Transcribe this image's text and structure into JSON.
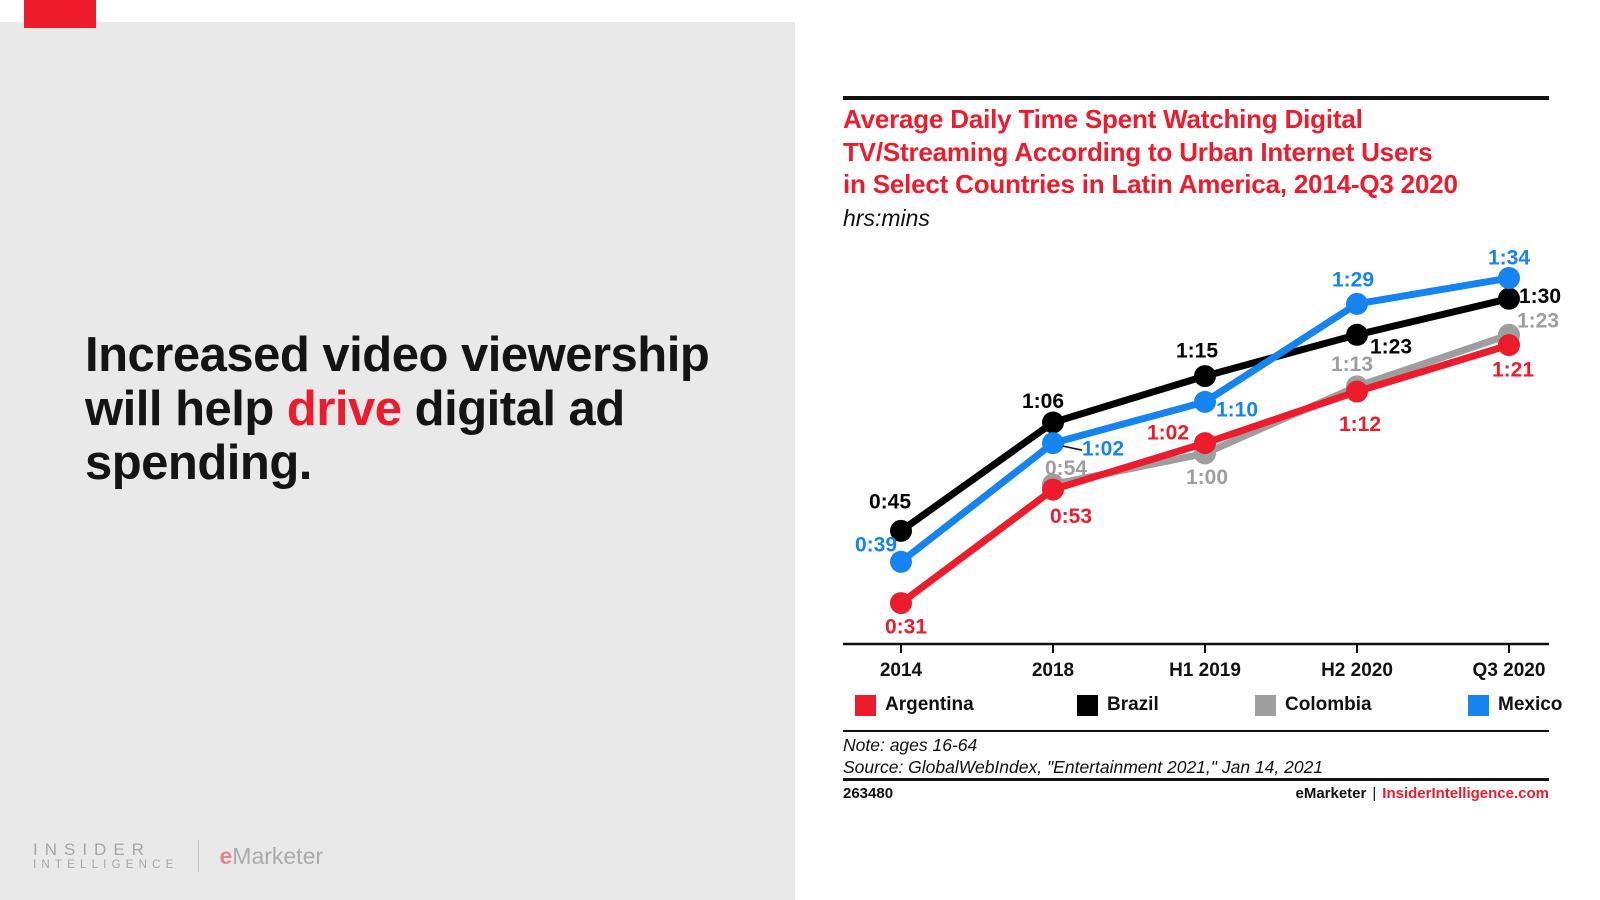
{
  "left_panel": {
    "headline": {
      "line1": "Increased video viewership",
      "line2_pre": "will help ",
      "line2_accent": "drive",
      "line2_post": " digital ad",
      "line3": "spending."
    },
    "logo": {
      "insider": "INSIDER",
      "intelligence": "INTELLIGENCE",
      "emarketer_e": "e",
      "emarketer_rest": "Marketer"
    }
  },
  "chart_panel": {
    "title_line1": "Average Daily Time Spent Watching Digital",
    "title_line2": "TV/Streaming According to Urban Internet Users",
    "title_line3": "in Select Countries in Latin America, 2014-Q3 2020",
    "subtitle": "hrs:mins",
    "note": "Note: ages 16-64",
    "source": "Source: GlobalWebIndex, \"Entertainment 2021,\" Jan 14, 2021",
    "chart_id": "263480",
    "footer_brand": "eMarketer",
    "footer_sep": "|",
    "footer_site": "InsiderIntelligence.com"
  },
  "colors": {
    "accent_red": "#ec1c2d",
    "panel_gray": "#e9e9e9",
    "axis_black": "#111111"
  },
  "chart_data": {
    "type": "line",
    "title": "Average Daily Time Spent Watching Digital TV/Streaming According to Urban Internet Users in Select Countries in Latin America, 2014-Q3 2020",
    "unit": "hrs:mins",
    "categories": [
      "2014",
      "2018",
      "H1 2019",
      "H2 2020",
      "Q3 2020"
    ],
    "legend_position": "bottom",
    "grid": false,
    "ylim_minutes": [
      0,
      100
    ],
    "series": [
      {
        "name": "Argentina",
        "color": "#ec1c2d",
        "points": [
          {
            "category": "2014",
            "label": "0:31",
            "minutes": 31,
            "dx": 5,
            "dy": 24
          },
          {
            "category": "2018",
            "label": "0:53",
            "minutes": 53,
            "dx": 18,
            "dy": 27
          },
          {
            "category": "H1 2019",
            "label": "1:02",
            "minutes": 62,
            "dx": -37,
            "dy": -10
          },
          {
            "category": "H2 2020",
            "label": "1:12",
            "minutes": 72,
            "dx": 3,
            "dy": 33
          },
          {
            "category": "Q3 2020",
            "label": "1:21",
            "minutes": 81,
            "dx": 4,
            "dy": 25
          }
        ]
      },
      {
        "name": "Brazil",
        "color": "#000000",
        "points": [
          {
            "category": "2014",
            "label": "0:45",
            "minutes": 45,
            "dx": -11,
            "dy": -29
          },
          {
            "category": "2018",
            "label": "1:06",
            "minutes": 66,
            "dx": -10,
            "dy": -21
          },
          {
            "category": "H1 2019",
            "label": "1:15",
            "minutes": 75,
            "dx": -8,
            "dy": -25
          },
          {
            "category": "H2 2020",
            "label": "1:23",
            "minutes": 83,
            "dx": 34,
            "dy": 12
          },
          {
            "category": "Q3 2020",
            "label": "1:30",
            "minutes": 90,
            "dx": 31,
            "dy": -2
          }
        ]
      },
      {
        "name": "Colombia",
        "color": "#9e9e9e",
        "points": [
          {
            "category": "2014",
            "label": null,
            "minutes": null
          },
          {
            "category": "2018",
            "label": "0:54",
            "minutes": 54,
            "dx": 13,
            "dy": -16
          },
          {
            "category": "H1 2019",
            "label": "1:00",
            "minutes": 60,
            "dx": 2,
            "dy": 24
          },
          {
            "category": "H2 2020",
            "label": "1:13",
            "minutes": 73,
            "dx": -5,
            "dy": -22
          },
          {
            "category": "Q3 2020",
            "label": "1:23",
            "minutes": 83,
            "dx": 29,
            "dy": -14
          }
        ]
      },
      {
        "name": "Mexico",
        "color": "#1583f0",
        "points": [
          {
            "category": "2014",
            "label": "0:39",
            "minutes": 39,
            "dx": -25,
            "dy": -17
          },
          {
            "category": "2018",
            "label": "1:02",
            "minutes": 62,
            "dx": 50,
            "dy": 6,
            "leader": true
          },
          {
            "category": "H1 2019",
            "label": "1:10",
            "minutes": 70,
            "dx": 32,
            "dy": 8
          },
          {
            "category": "H2 2020",
            "label": "1:29",
            "minutes": 89,
            "dx": -4,
            "dy": -24
          },
          {
            "category": "Q3 2020",
            "label": "1:34",
            "minutes": 94,
            "dx": 0,
            "dy": -20
          }
        ]
      }
    ]
  }
}
